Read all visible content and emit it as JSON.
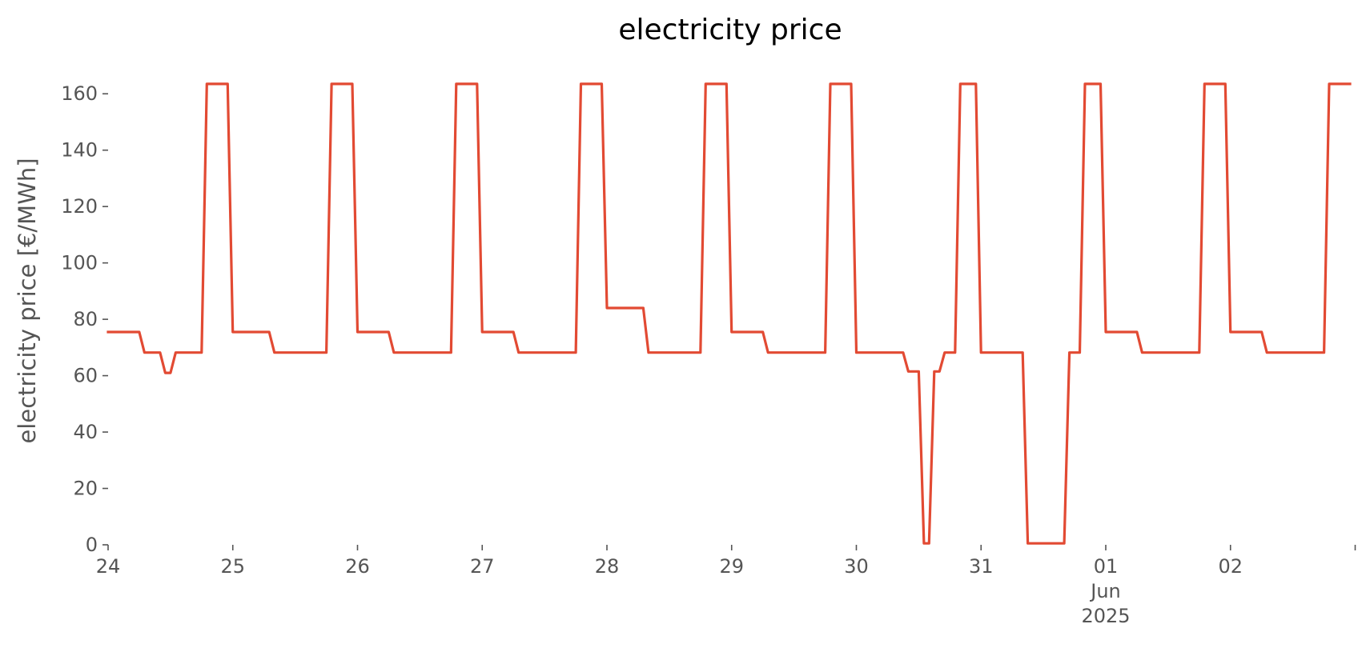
{
  "chart_data": {
    "type": "line",
    "title": "electricity price",
    "xlabel": "",
    "ylabel": "electricity price [€/MWh]",
    "ylim": [
      0,
      170
    ],
    "xlim": [
      "2025-05-24T00:00",
      "2025-06-02T23:00"
    ],
    "grid": false,
    "legend": "none",
    "yticks": [
      0,
      20,
      40,
      60,
      80,
      100,
      120,
      140,
      160
    ],
    "xticks": [
      {
        "x": "2025-05-24T00:00",
        "lines": [
          "24"
        ]
      },
      {
        "x": "2025-05-25T00:00",
        "lines": [
          "25"
        ]
      },
      {
        "x": "2025-05-26T00:00",
        "lines": [
          "26"
        ]
      },
      {
        "x": "2025-05-27T00:00",
        "lines": [
          "27"
        ]
      },
      {
        "x": "2025-05-28T00:00",
        "lines": [
          "28"
        ]
      },
      {
        "x": "2025-05-29T00:00",
        "lines": [
          "29"
        ]
      },
      {
        "x": "2025-05-30T00:00",
        "lines": [
          "30"
        ]
      },
      {
        "x": "2025-05-31T00:00",
        "lines": [
          "31"
        ]
      },
      {
        "x": "2025-06-01T00:00",
        "lines": [
          "01",
          "Jun",
          "2025"
        ]
      },
      {
        "x": "2025-06-02T00:00",
        "lines": [
          "02"
        ]
      },
      {
        "x": "2025-06-03T00:00",
        "lines": [
          ""
        ]
      }
    ],
    "series": [
      {
        "color": "#e24a33",
        "points": [
          [
            "2025-05-24T00:00",
            75.5
          ],
          [
            "2025-05-24T06:00",
            75.5
          ],
          [
            "2025-05-24T07:00",
            68.2
          ],
          [
            "2025-05-24T10:00",
            68.2
          ],
          [
            "2025-05-24T11:00",
            61.0
          ],
          [
            "2025-05-24T12:00",
            61.0
          ],
          [
            "2025-05-24T13:00",
            68.2
          ],
          [
            "2025-05-24T18:00",
            68.2
          ],
          [
            "2025-05-24T19:00",
            163.5
          ],
          [
            "2025-05-24T23:00",
            163.5
          ],
          [
            "2025-05-25T00:00",
            75.5
          ],
          [
            "2025-05-25T07:00",
            75.5
          ],
          [
            "2025-05-25T08:00",
            68.2
          ],
          [
            "2025-05-25T18:00",
            68.2
          ],
          [
            "2025-05-25T19:00",
            163.5
          ],
          [
            "2025-05-25T23:00",
            163.5
          ],
          [
            "2025-05-26T00:00",
            75.5
          ],
          [
            "2025-05-26T06:00",
            75.5
          ],
          [
            "2025-05-26T07:00",
            68.2
          ],
          [
            "2025-05-26T18:00",
            68.2
          ],
          [
            "2025-05-26T19:00",
            163.5
          ],
          [
            "2025-05-26T23:00",
            163.5
          ],
          [
            "2025-05-27T00:00",
            75.5
          ],
          [
            "2025-05-27T06:00",
            75.5
          ],
          [
            "2025-05-27T07:00",
            68.2
          ],
          [
            "2025-05-27T18:00",
            68.2
          ],
          [
            "2025-05-27T19:00",
            163.5
          ],
          [
            "2025-05-27T23:00",
            163.5
          ],
          [
            "2025-05-28T00:00",
            84.0
          ],
          [
            "2025-05-28T07:00",
            84.0
          ],
          [
            "2025-05-28T08:00",
            68.2
          ],
          [
            "2025-05-28T18:00",
            68.2
          ],
          [
            "2025-05-28T19:00",
            163.5
          ],
          [
            "2025-05-28T23:00",
            163.5
          ],
          [
            "2025-05-29T00:00",
            75.5
          ],
          [
            "2025-05-29T06:00",
            75.5
          ],
          [
            "2025-05-29T07:00",
            68.2
          ],
          [
            "2025-05-29T18:00",
            68.2
          ],
          [
            "2025-05-29T19:00",
            163.5
          ],
          [
            "2025-05-29T23:00",
            163.5
          ],
          [
            "2025-05-30T00:00",
            68.2
          ],
          [
            "2025-05-30T09:00",
            68.2
          ],
          [
            "2025-05-30T10:00",
            61.5
          ],
          [
            "2025-05-30T12:00",
            61.5
          ],
          [
            "2025-05-30T13:00",
            0.5
          ],
          [
            "2025-05-30T14:00",
            0.5
          ],
          [
            "2025-05-30T15:00",
            61.5
          ],
          [
            "2025-05-30T16:00",
            61.5
          ],
          [
            "2025-05-30T17:00",
            68.2
          ],
          [
            "2025-05-30T19:00",
            68.2
          ],
          [
            "2025-05-30T20:00",
            163.5
          ],
          [
            "2025-05-30T23:00",
            163.5
          ],
          [
            "2025-05-31T00:00",
            68.2
          ],
          [
            "2025-05-31T08:00",
            68.2
          ],
          [
            "2025-05-31T09:00",
            0.5
          ],
          [
            "2025-05-31T16:00",
            0.5
          ],
          [
            "2025-05-31T17:00",
            68.2
          ],
          [
            "2025-05-31T19:00",
            68.2
          ],
          [
            "2025-05-31T20:00",
            163.5
          ],
          [
            "2025-05-31T23:00",
            163.5
          ],
          [
            "2025-06-01T00:00",
            75.5
          ],
          [
            "2025-06-01T06:00",
            75.5
          ],
          [
            "2025-06-01T07:00",
            68.2
          ],
          [
            "2025-06-01T18:00",
            68.2
          ],
          [
            "2025-06-01T19:00",
            163.5
          ],
          [
            "2025-06-01T23:00",
            163.5
          ],
          [
            "2025-06-02T00:00",
            75.5
          ],
          [
            "2025-06-02T06:00",
            75.5
          ],
          [
            "2025-06-02T07:00",
            68.2
          ],
          [
            "2025-06-02T18:00",
            68.2
          ],
          [
            "2025-06-02T19:00",
            163.5
          ],
          [
            "2025-06-02T23:00",
            163.5
          ]
        ]
      }
    ]
  }
}
